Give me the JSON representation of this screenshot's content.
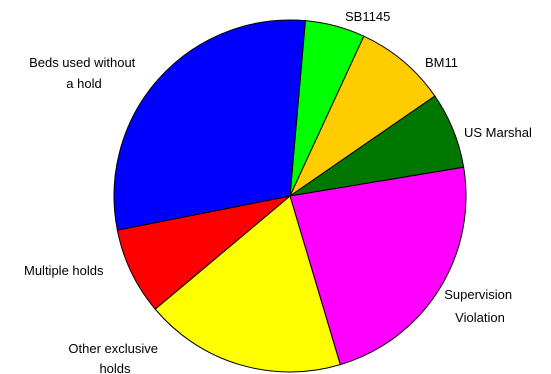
{
  "chart_data": {
    "type": "pie",
    "title": "",
    "slices": [
      {
        "label": "SB1145",
        "value": 5.5,
        "color": "#00ff00"
      },
      {
        "label": "BM11",
        "value": 8.5,
        "color": "#ffcc00"
      },
      {
        "label": "US Marshal",
        "value": 7.0,
        "color": "#007700"
      },
      {
        "label": "Supervision Violation",
        "value": 23.0,
        "color": "#ff00ff"
      },
      {
        "label": "Other exclusive holds",
        "value": 18.5,
        "color": "#ffff00"
      },
      {
        "label": "Multiple holds",
        "value": 8.0,
        "color": "#ff0000"
      },
      {
        "label": "Beds used without a hold",
        "value": 29.5,
        "color": "#0000ff"
      }
    ]
  }
}
